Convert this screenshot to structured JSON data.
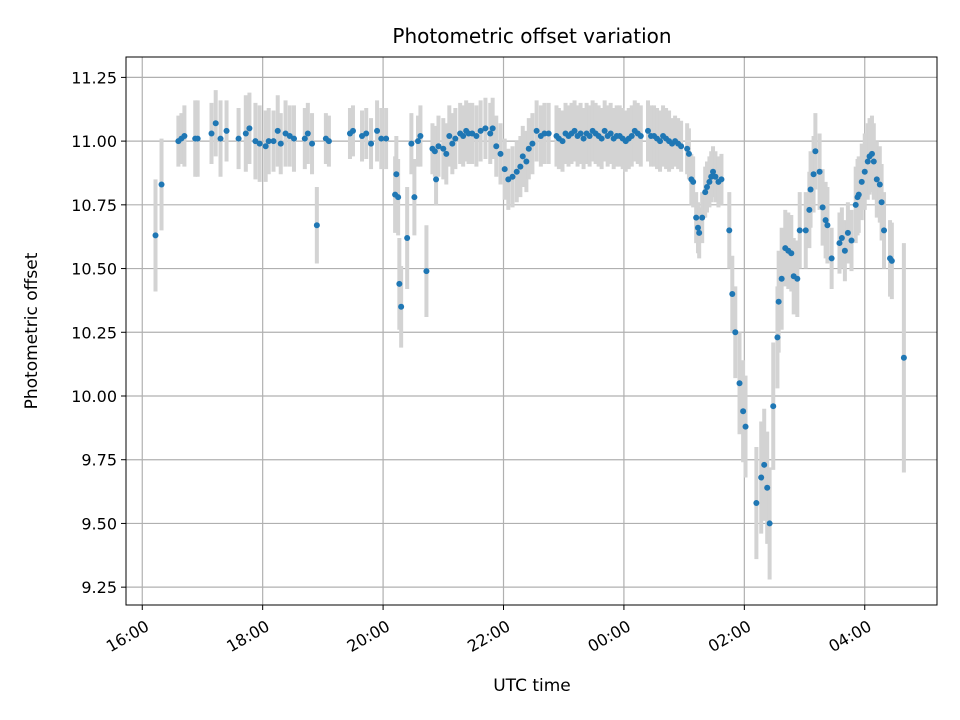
{
  "chart_data": {
    "type": "scatter",
    "title": "Photometric offset variation",
    "xlabel": "UTC time",
    "ylabel": "Photometric offset",
    "x_unit": "hours since 16:00 UTC",
    "xlim": [
      -0.27,
      13.2
    ],
    "ylim": [
      9.18,
      11.33
    ],
    "grid": true,
    "x_ticks": [
      {
        "value": 0,
        "label": "16:00"
      },
      {
        "value": 2,
        "label": "18:00"
      },
      {
        "value": 4,
        "label": "20:00"
      },
      {
        "value": 6,
        "label": "22:00"
      },
      {
        "value": 8,
        "label": "00:00"
      },
      {
        "value": 10,
        "label": "02:00"
      },
      {
        "value": 12,
        "label": "04:00"
      }
    ],
    "y_ticks": [
      {
        "value": 9.25,
        "label": "9.25"
      },
      {
        "value": 9.5,
        "label": "9.50"
      },
      {
        "value": 9.75,
        "label": "9.75"
      },
      {
        "value": 10.0,
        "label": "10.00"
      },
      {
        "value": 10.25,
        "label": "10.25"
      },
      {
        "value": 10.5,
        "label": "10.50"
      },
      {
        "value": 10.75,
        "label": "10.75"
      },
      {
        "value": 11.0,
        "label": "11.00"
      },
      {
        "value": 11.25,
        "label": "11.25"
      }
    ],
    "colors": {
      "points": "#1f77b4",
      "error_bars": "#d3d3d3",
      "grid": "#b0b0b0",
      "axes": "#000000"
    },
    "series": [
      {
        "name": "offset",
        "points": [
          [
            0.22,
            10.63,
            0.22
          ],
          [
            0.32,
            10.83,
            0.18
          ],
          [
            0.6,
            11.0,
            0.1
          ],
          [
            0.65,
            11.01,
            0.1
          ],
          [
            0.7,
            11.02,
            0.12
          ],
          [
            0.88,
            11.01,
            0.15
          ],
          [
            0.92,
            11.01,
            0.15
          ],
          [
            1.15,
            11.03,
            0.12
          ],
          [
            1.22,
            11.07,
            0.13
          ],
          [
            1.3,
            11.01,
            0.15
          ],
          [
            1.4,
            11.04,
            0.12
          ],
          [
            1.6,
            11.01,
            0.12
          ],
          [
            1.72,
            11.03,
            0.15
          ],
          [
            1.78,
            11.05,
            0.14
          ],
          [
            1.88,
            11.0,
            0.15
          ],
          [
            1.95,
            10.99,
            0.15
          ],
          [
            2.05,
            10.98,
            0.14
          ],
          [
            2.1,
            11.0,
            0.13
          ],
          [
            2.18,
            11.0,
            0.12
          ],
          [
            2.25,
            11.04,
            0.14
          ],
          [
            2.3,
            10.99,
            0.12
          ],
          [
            2.38,
            11.03,
            0.13
          ],
          [
            2.45,
            11.02,
            0.12
          ],
          [
            2.52,
            11.01,
            0.13
          ],
          [
            2.7,
            11.01,
            0.12
          ],
          [
            2.75,
            11.03,
            0.12
          ],
          [
            2.82,
            10.99,
            0.12
          ],
          [
            2.9,
            10.67,
            0.15
          ],
          [
            3.05,
            11.01,
            0.1
          ],
          [
            3.1,
            11.0,
            0.1
          ],
          [
            3.45,
            11.03,
            0.1
          ],
          [
            3.5,
            11.04,
            0.1
          ],
          [
            3.65,
            11.02,
            0.1
          ],
          [
            3.72,
            11.03,
            0.1
          ],
          [
            3.8,
            10.99,
            0.1
          ],
          [
            3.9,
            11.04,
            0.12
          ],
          [
            3.97,
            11.01,
            0.12
          ],
          [
            4.05,
            11.01,
            0.12
          ],
          [
            4.2,
            10.79,
            0.15
          ],
          [
            4.22,
            10.87,
            0.15
          ],
          [
            4.25,
            10.78,
            0.15
          ],
          [
            4.27,
            10.44,
            0.18
          ],
          [
            4.3,
            10.35,
            0.16
          ],
          [
            4.4,
            10.62,
            0.2
          ],
          [
            4.47,
            10.99,
            0.12
          ],
          [
            4.52,
            10.78,
            0.15
          ],
          [
            4.58,
            11.0,
            0.1
          ],
          [
            4.62,
            11.02,
            0.12
          ],
          [
            4.72,
            10.49,
            0.18
          ],
          [
            4.82,
            10.97,
            0.1
          ],
          [
            4.86,
            10.96,
            0.1
          ],
          [
            4.88,
            10.85,
            0.1
          ],
          [
            4.92,
            10.98,
            0.12
          ],
          [
            5.0,
            10.97,
            0.12
          ],
          [
            5.05,
            10.95,
            0.12
          ],
          [
            5.1,
            11.02,
            0.12
          ],
          [
            5.15,
            10.99,
            0.12
          ],
          [
            5.2,
            11.01,
            0.12
          ],
          [
            5.28,
            11.03,
            0.12
          ],
          [
            5.33,
            11.02,
            0.12
          ],
          [
            5.38,
            11.04,
            0.12
          ],
          [
            5.42,
            11.03,
            0.12
          ],
          [
            5.48,
            11.03,
            0.12
          ],
          [
            5.55,
            11.02,
            0.12
          ],
          [
            5.62,
            11.04,
            0.12
          ],
          [
            5.7,
            11.05,
            0.12
          ],
          [
            5.78,
            11.03,
            0.12
          ],
          [
            5.82,
            11.05,
            0.12
          ],
          [
            5.88,
            10.98,
            0.12
          ],
          [
            5.95,
            10.95,
            0.12
          ],
          [
            6.02,
            10.89,
            0.12
          ],
          [
            6.08,
            10.85,
            0.12
          ],
          [
            6.15,
            10.86,
            0.12
          ],
          [
            6.22,
            10.88,
            0.12
          ],
          [
            6.28,
            10.9,
            0.12
          ],
          [
            6.32,
            10.94,
            0.12
          ],
          [
            6.38,
            10.92,
            0.12
          ],
          [
            6.42,
            10.97,
            0.12
          ],
          [
            6.48,
            10.99,
            0.12
          ],
          [
            6.55,
            11.04,
            0.12
          ],
          [
            6.62,
            11.02,
            0.12
          ],
          [
            6.68,
            11.03,
            0.12
          ],
          [
            6.75,
            11.03,
            0.12
          ],
          [
            6.88,
            11.02,
            0.12
          ],
          [
            6.92,
            11.01,
            0.12
          ],
          [
            6.98,
            11.0,
            0.12
          ],
          [
            7.03,
            11.03,
            0.12
          ],
          [
            7.08,
            11.02,
            0.12
          ],
          [
            7.13,
            11.03,
            0.12
          ],
          [
            7.18,
            11.04,
            0.12
          ],
          [
            7.23,
            11.02,
            0.12
          ],
          [
            7.28,
            11.03,
            0.12
          ],
          [
            7.33,
            11.01,
            0.12
          ],
          [
            7.38,
            11.03,
            0.12
          ],
          [
            7.43,
            11.02,
            0.12
          ],
          [
            7.48,
            11.04,
            0.12
          ],
          [
            7.53,
            11.03,
            0.12
          ],
          [
            7.58,
            11.02,
            0.12
          ],
          [
            7.63,
            11.01,
            0.12
          ],
          [
            7.68,
            11.04,
            0.12
          ],
          [
            7.73,
            11.02,
            0.12
          ],
          [
            7.78,
            11.03,
            0.12
          ],
          [
            7.83,
            11.01,
            0.12
          ],
          [
            7.88,
            11.02,
            0.12
          ],
          [
            7.93,
            11.02,
            0.12
          ],
          [
            7.98,
            11.01,
            0.12
          ],
          [
            8.03,
            11.0,
            0.12
          ],
          [
            8.08,
            11.01,
            0.12
          ],
          [
            8.13,
            11.02,
            0.12
          ],
          [
            8.18,
            11.04,
            0.12
          ],
          [
            8.23,
            11.03,
            0.12
          ],
          [
            8.28,
            11.02,
            0.12
          ],
          [
            8.4,
            11.04,
            0.12
          ],
          [
            8.45,
            11.02,
            0.12
          ],
          [
            8.5,
            11.02,
            0.12
          ],
          [
            8.55,
            11.01,
            0.12
          ],
          [
            8.6,
            11.0,
            0.12
          ],
          [
            8.65,
            11.02,
            0.12
          ],
          [
            8.7,
            11.01,
            0.12
          ],
          [
            8.75,
            11.0,
            0.12
          ],
          [
            8.8,
            10.99,
            0.1
          ],
          [
            8.85,
            11.0,
            0.1
          ],
          [
            8.9,
            10.99,
            0.1
          ],
          [
            8.95,
            10.98,
            0.1
          ],
          [
            9.05,
            10.97,
            0.1
          ],
          [
            9.08,
            10.95,
            0.1
          ],
          [
            9.12,
            10.85,
            0.1
          ],
          [
            9.15,
            10.84,
            0.1
          ],
          [
            9.2,
            10.7,
            0.1
          ],
          [
            9.23,
            10.66,
            0.1
          ],
          [
            9.25,
            10.64,
            0.1
          ],
          [
            9.3,
            10.7,
            0.1
          ],
          [
            9.35,
            10.8,
            0.1
          ],
          [
            9.38,
            10.82,
            0.1
          ],
          [
            9.42,
            10.84,
            0.1
          ],
          [
            9.45,
            10.86,
            0.1
          ],
          [
            9.48,
            10.88,
            0.1
          ],
          [
            9.52,
            10.86,
            0.1
          ],
          [
            9.57,
            10.84,
            0.1
          ],
          [
            9.62,
            10.85,
            0.1
          ],
          [
            9.75,
            10.65,
            0.15
          ],
          [
            9.8,
            10.4,
            0.15
          ],
          [
            9.85,
            10.25,
            0.18
          ],
          [
            9.92,
            10.05,
            0.2
          ],
          [
            9.98,
            9.94,
            0.2
          ],
          [
            10.02,
            9.88,
            0.2
          ],
          [
            10.2,
            9.58,
            0.22
          ],
          [
            10.28,
            9.68,
            0.22
          ],
          [
            10.33,
            9.73,
            0.22
          ],
          [
            10.38,
            9.64,
            0.22
          ],
          [
            10.42,
            9.5,
            0.22
          ],
          [
            10.48,
            9.96,
            0.25
          ],
          [
            10.55,
            10.23,
            0.2
          ],
          [
            10.57,
            10.37,
            0.2
          ],
          [
            10.62,
            10.46,
            0.2
          ],
          [
            10.68,
            10.58,
            0.15
          ],
          [
            10.73,
            10.57,
            0.15
          ],
          [
            10.78,
            10.56,
            0.15
          ],
          [
            10.82,
            10.47,
            0.15
          ],
          [
            10.88,
            10.46,
            0.15
          ],
          [
            10.92,
            10.65,
            0.15
          ],
          [
            11.02,
            10.65,
            0.15
          ],
          [
            11.08,
            10.73,
            0.15
          ],
          [
            11.1,
            10.81,
            0.15
          ],
          [
            11.15,
            10.87,
            0.15
          ],
          [
            11.18,
            10.96,
            0.15
          ],
          [
            11.25,
            10.88,
            0.15
          ],
          [
            11.3,
            10.74,
            0.15
          ],
          [
            11.35,
            10.69,
            0.15
          ],
          [
            11.38,
            10.67,
            0.15
          ],
          [
            11.45,
            10.54,
            0.12
          ],
          [
            11.58,
            10.6,
            0.12
          ],
          [
            11.62,
            10.62,
            0.12
          ],
          [
            11.67,
            10.57,
            0.12
          ],
          [
            11.72,
            10.64,
            0.12
          ],
          [
            11.78,
            10.61,
            0.12
          ],
          [
            11.85,
            10.75,
            0.15
          ],
          [
            11.88,
            10.78,
            0.15
          ],
          [
            11.9,
            10.79,
            0.15
          ],
          [
            11.95,
            10.84,
            0.15
          ],
          [
            12.0,
            10.88,
            0.15
          ],
          [
            12.05,
            10.92,
            0.15
          ],
          [
            12.08,
            10.94,
            0.15
          ],
          [
            12.12,
            10.95,
            0.15
          ],
          [
            12.15,
            10.92,
            0.15
          ],
          [
            12.2,
            10.85,
            0.15
          ],
          [
            12.25,
            10.83,
            0.15
          ],
          [
            12.28,
            10.76,
            0.15
          ],
          [
            12.32,
            10.65,
            0.15
          ],
          [
            12.42,
            10.54,
            0.15
          ],
          [
            12.45,
            10.53,
            0.15
          ],
          [
            12.65,
            10.15,
            0.45
          ]
        ]
      }
    ]
  }
}
